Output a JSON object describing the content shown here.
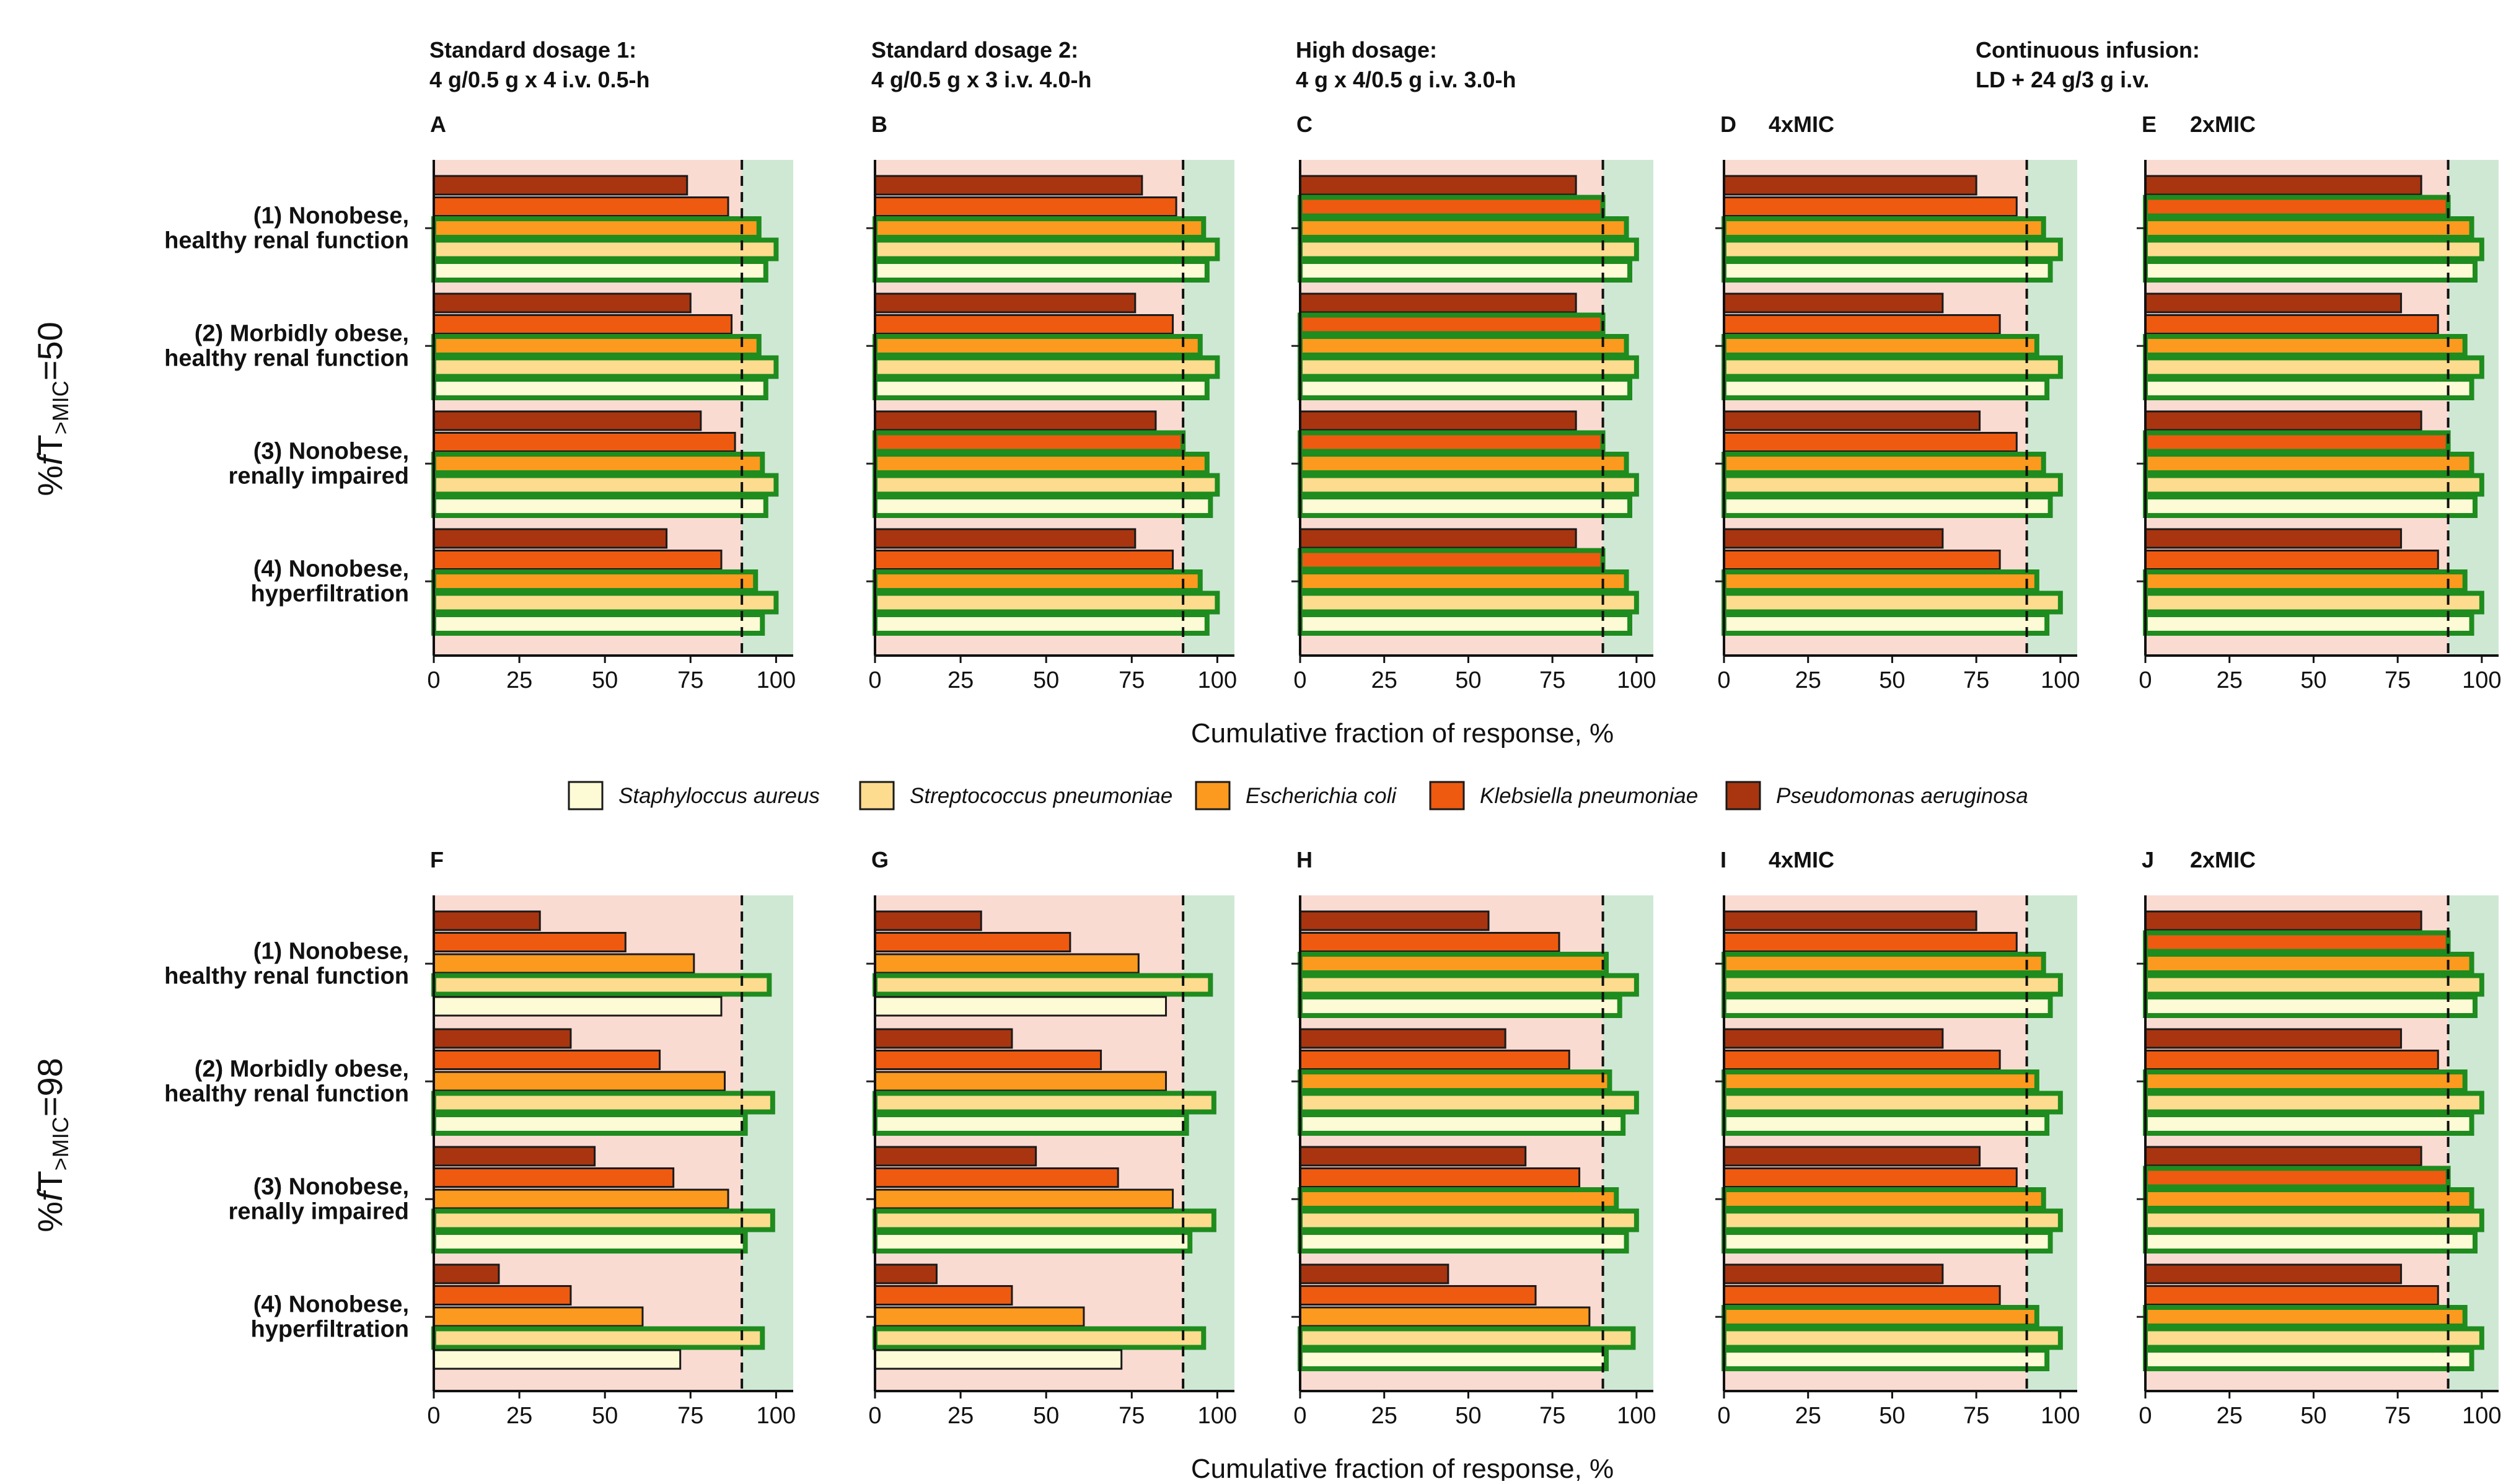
{
  "chart_data": {
    "type": "bar",
    "orientation": "horizontal",
    "xlabel": "Cumulative fraction of response, %",
    "xticks": [
      "0",
      "25",
      "50",
      "75",
      "100"
    ],
    "xlim": [
      0,
      105
    ],
    "target_threshold": 90,
    "shading": {
      "below_threshold": "#fadbd2",
      "above_threshold": "#cfe8d4"
    },
    "highlight_rule": "bars with value >= 90 are outlined in green",
    "highlight_color": "#1e8c1e",
    "column_headers": [
      {
        "line1": "Standard dosage 1:",
        "line2": "4 g/0.5 g x 4 i.v. 0.5-h"
      },
      {
        "line1": "Standard dosage 2:",
        "line2": "4 g/0.5 g x 3 i.v. 4.0-h"
      },
      {
        "line1": "High dosage:",
        "line2": "4 g x 4/0.5 g i.v. 3.0-h"
      },
      {
        "line1": "Continuous infusion:",
        "line2": "LD + 24 g/3 g i.v."
      }
    ],
    "row_labels": [
      {
        "prefix": "%",
        "italic": "f",
        "t": "T",
        "sub": ">MIC",
        "suffix": "=50"
      },
      {
        "prefix": "%",
        "italic": "f",
        "t": "T",
        "sub": ">MIC",
        "suffix": "=98"
      }
    ],
    "scenarios": [
      {
        "line1": "(1) Nonobese,",
        "line2": "healthy renal function"
      },
      {
        "line1": "(2) Morbidly obese,",
        "line2": "healthy renal function"
      },
      {
        "line1": "(3) Nonobese,",
        "line2": "renally impaired"
      },
      {
        "line1": "(4) Nonobese,",
        "line2": "hyperfiltration"
      }
    ],
    "legend": [
      {
        "name": "Staphyloccus aureus",
        "color": "#fdfad6"
      },
      {
        "name": "Streptococcus pneumoniae",
        "color": "#fddc8f"
      },
      {
        "name": "Escherichia coli",
        "color": "#fb9a1e"
      },
      {
        "name": "Klebsiella pneumoniae",
        "color": "#ee5a10"
      },
      {
        "name": "Pseudomonas aeruginosa",
        "color": "#a83510"
      }
    ],
    "series_order_top_to_bottom": [
      "Pseudomonas aeruginosa",
      "Klebsiella pneumoniae",
      "Escherichia coli",
      "Streptococcus pneumoniae",
      "Staphyloccus aureus"
    ],
    "panels": [
      {
        "letter": "A",
        "subtitle": "",
        "values": [
          [
            74,
            86,
            95,
            100,
            97
          ],
          [
            75,
            87,
            95,
            100,
            97
          ],
          [
            78,
            88,
            96,
            100,
            97
          ],
          [
            68,
            84,
            94,
            100,
            96
          ]
        ]
      },
      {
        "letter": "B",
        "subtitle": "",
        "values": [
          [
            78,
            88,
            96,
            100,
            97
          ],
          [
            76,
            87,
            95,
            100,
            97
          ],
          [
            82,
            90,
            97,
            100,
            98
          ],
          [
            76,
            87,
            95,
            100,
            97
          ]
        ]
      },
      {
        "letter": "C",
        "subtitle": "",
        "values": [
          [
            82,
            90,
            97,
            100,
            98
          ],
          [
            82,
            90,
            97,
            100,
            98
          ],
          [
            82,
            90,
            97,
            100,
            98
          ],
          [
            82,
            90,
            97,
            100,
            98
          ]
        ]
      },
      {
        "letter": "D",
        "subtitle": "4xMIC",
        "values": [
          [
            75,
            87,
            95,
            100,
            97
          ],
          [
            65,
            82,
            93,
            100,
            96
          ],
          [
            76,
            87,
            95,
            100,
            97
          ],
          [
            65,
            82,
            93,
            100,
            96
          ]
        ]
      },
      {
        "letter": "E",
        "subtitle": "2xMIC",
        "values": [
          [
            82,
            90,
            97,
            100,
            98
          ],
          [
            76,
            87,
            95,
            100,
            97
          ],
          [
            82,
            90,
            97,
            100,
            98
          ],
          [
            76,
            87,
            95,
            100,
            97
          ]
        ]
      },
      {
        "letter": "F",
        "subtitle": "",
        "values": [
          [
            31,
            56,
            76,
            98,
            84
          ],
          [
            40,
            66,
            85,
            99,
            91
          ],
          [
            47,
            70,
            86,
            99,
            91
          ],
          [
            19,
            40,
            61,
            96,
            72
          ]
        ]
      },
      {
        "letter": "G",
        "subtitle": "",
        "values": [
          [
            31,
            57,
            77,
            98,
            85
          ],
          [
            40,
            66,
            85,
            99,
            91
          ],
          [
            47,
            71,
            87,
            99,
            92
          ],
          [
            18,
            40,
            61,
            96,
            72
          ]
        ]
      },
      {
        "letter": "H",
        "subtitle": "",
        "values": [
          [
            56,
            77,
            91,
            100,
            95
          ],
          [
            61,
            80,
            92,
            100,
            96
          ],
          [
            67,
            83,
            94,
            100,
            97
          ],
          [
            44,
            70,
            86,
            99,
            91
          ]
        ]
      },
      {
        "letter": "I",
        "subtitle": "4xMIC",
        "values": [
          [
            75,
            87,
            95,
            100,
            97
          ],
          [
            65,
            82,
            93,
            100,
            96
          ],
          [
            76,
            87,
            95,
            100,
            97
          ],
          [
            65,
            82,
            93,
            100,
            96
          ]
        ]
      },
      {
        "letter": "J",
        "subtitle": "2xMIC",
        "values": [
          [
            82,
            90,
            97,
            100,
            98
          ],
          [
            76,
            87,
            95,
            100,
            97
          ],
          [
            82,
            90,
            97,
            100,
            98
          ],
          [
            76,
            87,
            95,
            100,
            97
          ]
        ]
      }
    ]
  }
}
